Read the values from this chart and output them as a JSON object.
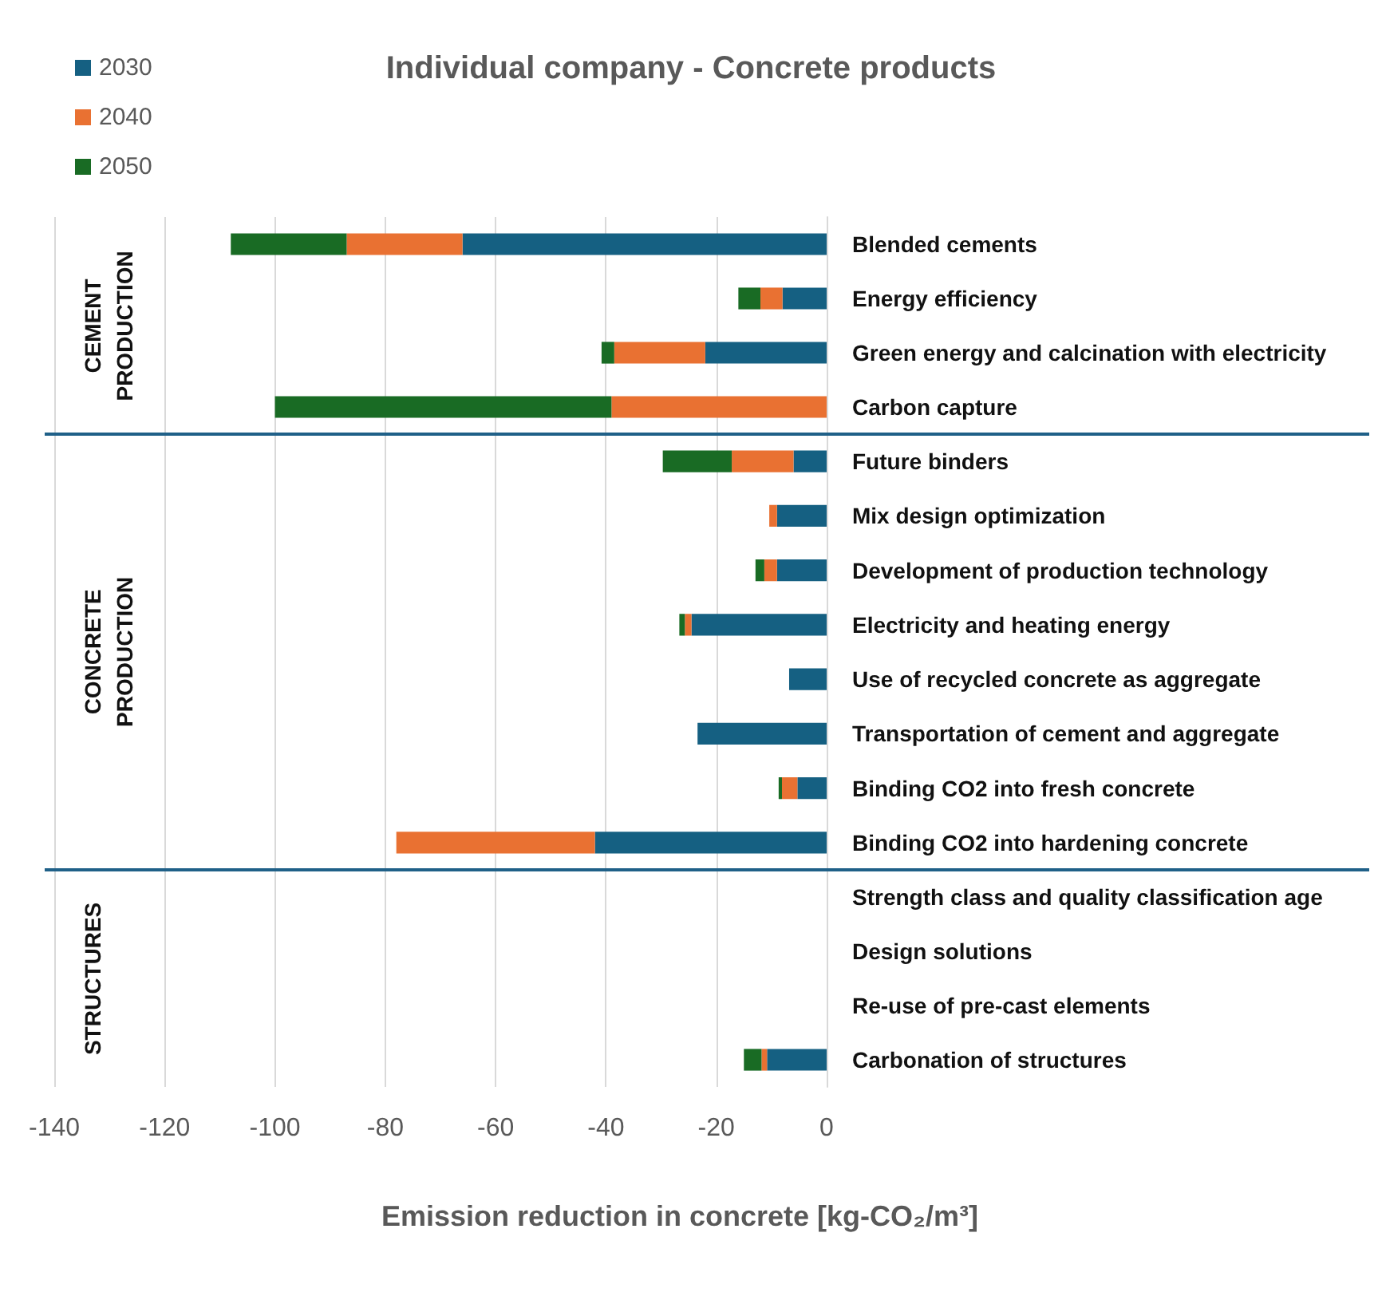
{
  "chart_data": [
    {
      "type": "bar",
      "orientation": "horizontal",
      "stacked": true,
      "title": "Individual company - Concrete products",
      "ylabel": "CEMENT\nPRODUCTION",
      "categories": [
        "Blended cements",
        "Energy efficiency",
        "Green energy and calcination with electricity",
        "Carbon capture"
      ],
      "series": [
        {
          "name": "2030",
          "color": "#156082",
          "values": [
            -66,
            -8,
            -22,
            null
          ]
        },
        {
          "name": "2040",
          "color": "#e97132",
          "values": [
            -21,
            -4,
            -16.5,
            -39
          ]
        },
        {
          "name": "2050",
          "color": "#196b24",
          "values": [
            -21,
            -4,
            -2.3,
            -61
          ]
        }
      ],
      "xlim": [
        -140,
        0
      ],
      "xticks": [
        -140,
        -120,
        -100,
        -80,
        -60,
        -40,
        -20,
        0
      ],
      "tick_labels": "y",
      "grid": "x",
      "legend": "top left"
    },
    {
      "type": "bar",
      "orientation": "horizontal",
      "stacked": true,
      "ylabel": "CONCRETE\nPRODUCTION",
      "categories": [
        "Future binders",
        "Mix design optimization",
        "Development of production technology",
        "Electricity and heating energy",
        "Use of recycled concrete as aggregate",
        "Transportation of cement and aggregate",
        "Binding CO2 into fresh concrete",
        "Binding CO2 into hardening concrete"
      ],
      "series": [
        {
          "color": "#156082",
          "values": [
            -6,
            -9,
            -9,
            -24.5,
            -6.8,
            -23.4,
            -5.3,
            -42
          ]
        },
        {
          "color": "#e97132",
          "values": [
            -11.2,
            -1.4,
            -2.3,
            -1.2,
            null,
            null,
            -2.8,
            -36
          ]
        },
        {
          "color": "#196b24",
          "values": [
            -12.5,
            null,
            -1.6,
            -1,
            null,
            null,
            -0.6,
            null
          ]
        }
      ],
      "xlim": [
        -140,
        0
      ],
      "xticks": [
        -140,
        -120,
        -100,
        -80,
        -60,
        -40,
        -20,
        0
      ],
      "tick_labels": "y",
      "grid": "x"
    },
    {
      "type": "bar",
      "orientation": "horizontal",
      "stacked": true,
      "ylabel": "STRUCTURES",
      "xlabel": "Emission reduction in concrete [kg-CO₂/m³]",
      "categories": [
        "Strength class and quality classification age",
        "Design solutions",
        "Re-use of pre-cast elements",
        "Carbonation of structures"
      ],
      "series": [
        {
          "color": "#156082",
          "values": [
            null,
            null,
            null,
            -10.8
          ]
        },
        {
          "color": "#e97132",
          "values": [
            null,
            null,
            null,
            -1
          ]
        },
        {
          "color": "#196b24",
          "values": [
            null,
            null,
            null,
            -3.2
          ]
        }
      ],
      "xlim": [
        -140,
        0
      ],
      "xticks": [
        -140,
        -120,
        -100,
        -80,
        -60,
        -40,
        -20,
        0
      ],
      "grid": "x"
    }
  ]
}
